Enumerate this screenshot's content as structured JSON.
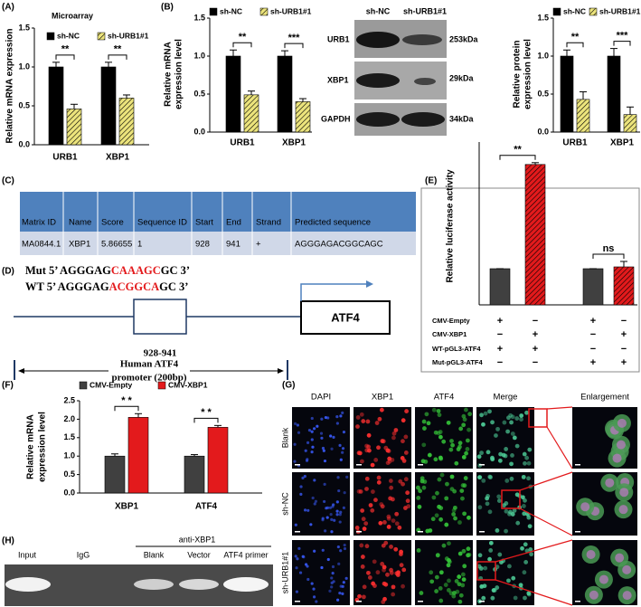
{
  "panel_labels": [
    "(A)",
    "(B)",
    "(C)",
    "(D)",
    "(E)",
    "(F)",
    "(G)",
    "(H)"
  ],
  "chart_data": [
    {
      "type": "bar",
      "title": "Microarray",
      "y_label": "Relative mRNA expression",
      "categories": [
        "URB1",
        "XBP1"
      ],
      "series": [
        {
          "name": "sh-NC",
          "color": "#000000",
          "hatch": false,
          "values": [
            1.0,
            1.0
          ],
          "errors": [
            0.06,
            0.06
          ]
        },
        {
          "name": "sh-URB1#1",
          "color": "#ece47c",
          "hatch": true,
          "values": [
            0.46,
            0.6
          ],
          "errors": [
            0.06,
            0.04
          ]
        }
      ],
      "significance": [
        "**",
        "**"
      ],
      "ylim": [
        0,
        1.5
      ],
      "yticks": [
        {
          "value": 0,
          "label": "0.0"
        },
        {
          "value": 0.5,
          "label": "0.5"
        },
        {
          "value": 1,
          "label": "1.0"
        },
        {
          "value": 1.5,
          "label": "1.5"
        }
      ]
    },
    {
      "type": "bar",
      "y_label": [
        "Relative mRNA",
        "expression level"
      ],
      "categories": [
        "URB1",
        "XBP1"
      ],
      "series": [
        {
          "name": "sh-NC",
          "color": "#000000",
          "hatch": false,
          "values": [
            1.0,
            1.0
          ],
          "errors": [
            0.08,
            0.07
          ]
        },
        {
          "name": "sh-URB1#1",
          "color": "#ece47c",
          "hatch": true,
          "values": [
            0.49,
            0.4
          ],
          "errors": [
            0.05,
            0.04
          ]
        }
      ],
      "significance": [
        "**",
        "***"
      ],
      "ylim": [
        0,
        1.5
      ],
      "yticks": [
        {
          "value": 0,
          "label": "0.0"
        },
        {
          "value": 0.5,
          "label": "0.5"
        },
        {
          "value": 1,
          "label": "1.0"
        },
        {
          "value": 1.5,
          "label": "1.5"
        }
      ]
    },
    {
      "type": "bar",
      "y_label": [
        "Relative protein",
        "expression level"
      ],
      "categories": [
        "URB1",
        "XBP1"
      ],
      "series": [
        {
          "name": "sh-NC",
          "color": "#000000",
          "hatch": false,
          "values": [
            1.0,
            1.0
          ],
          "errors": [
            0.08,
            0.1
          ]
        },
        {
          "name": "sh-URB1#1",
          "color": "#ece47c",
          "hatch": true,
          "values": [
            0.43,
            0.23
          ],
          "errors": [
            0.1,
            0.1
          ]
        }
      ],
      "significance": [
        "**",
        "***"
      ],
      "ylim": [
        0,
        1.5
      ],
      "yticks": [
        {
          "value": 0,
          "label": "0.0"
        },
        {
          "value": 0.5,
          "label": "0.5"
        },
        {
          "value": 1,
          "label": "1.0"
        },
        {
          "value": 1.5,
          "label": "1.5"
        }
      ]
    },
    {
      "type": "bar",
      "y_label": "Relative luciferase activity",
      "series": [
        {
          "colors": [
            "#404040",
            "#e31a1c",
            "#404040",
            "#e31a1c"
          ],
          "hatch": [
            false,
            true,
            false,
            true
          ],
          "values": [
            1,
            3.88,
            1,
            1.05
          ],
          "errors": [
            0,
            0.05,
            0,
            0.15
          ]
        }
      ],
      "significance": [
        "**",
        "ns"
      ],
      "ylim": [
        0,
        4.5
      ],
      "conditions": [
        {
          "name": "CMV-Empty",
          "marks": [
            "+",
            "−",
            "+",
            "−"
          ]
        },
        {
          "name": "CMV-XBP1",
          "marks": [
            "−",
            "+",
            "−",
            "+"
          ]
        },
        {
          "name": "WT-pGL3-ATF4",
          "marks": [
            "+",
            "+",
            "−",
            "−"
          ]
        },
        {
          "name": "Mut-pGL3-ATF4",
          "marks": [
            "−",
            "−",
            "+",
            "+"
          ]
        }
      ]
    },
    {
      "type": "bar",
      "y_label": [
        "Relative mRNA",
        "expression level"
      ],
      "categories": [
        "XBP1",
        "ATF4"
      ],
      "series": [
        {
          "name": "CMV-Empty",
          "color": "#404040",
          "hatch": false,
          "values": [
            1.0,
            1.0
          ],
          "errors": [
            0.06,
            0.04
          ]
        },
        {
          "name": "CMV-XBP1",
          "color": "#e31a1c",
          "hatch": false,
          "values": [
            2.05,
            1.78
          ],
          "errors": [
            0.1,
            0.05
          ]
        }
      ],
      "significance": [
        "* *",
        "* *"
      ],
      "ylim": [
        0,
        2.5
      ],
      "yticks": [
        {
          "value": 0,
          "label": "0.0"
        },
        {
          "value": 0.5,
          "label": "0.5"
        },
        {
          "value": 1,
          "label": "1.0"
        },
        {
          "value": 1.5,
          "label": "1.5"
        },
        {
          "value": 2,
          "label": "2.0"
        },
        {
          "value": 2.5,
          "label": "2.5"
        }
      ]
    }
  ],
  "western_blot": {
    "lanes": [
      "sh-NC",
      "sh-URB1#1"
    ],
    "proteins": [
      "URB1",
      "XBP1",
      "GAPDH"
    ],
    "sizes": [
      "253kDa",
      "29kDa",
      "34kDa"
    ]
  },
  "table": {
    "header": [
      "Matrix ID",
      "Name",
      "Score",
      "Sequence ID",
      "Start",
      "End",
      "Strand",
      "Predicted sequence"
    ],
    "rows": [
      [
        "MA0844.1",
        "XBP1",
        5.86655,
        1,
        928,
        941,
        "+",
        "AGGGAGACGGCAGC"
      ]
    ]
  },
  "promoter": {
    "mut": [
      "Mut 5’ AGGGAG",
      "CAAAGC",
      "GC 3’"
    ],
    "wt": [
      "WT  5’ AGGGAG",
      "ACGGCA",
      "GC 3’"
    ],
    "site": "928-941",
    "gene": "ATF4",
    "caption": [
      "Human ATF4",
      "promoter (200bp)"
    ]
  },
  "microscopy": {
    "channels": [
      "DAPI",
      "XBP1",
      "ATF4",
      "Merge",
      "Enlargement"
    ],
    "groups": [
      "Blank",
      "sh-NC",
      "sh-URB1#1"
    ]
  },
  "gel": {
    "antibody": "anti-XBP1",
    "lanes": [
      "Input",
      "IgG",
      "Blank",
      "Vector",
      "ATF4 primer"
    ]
  }
}
